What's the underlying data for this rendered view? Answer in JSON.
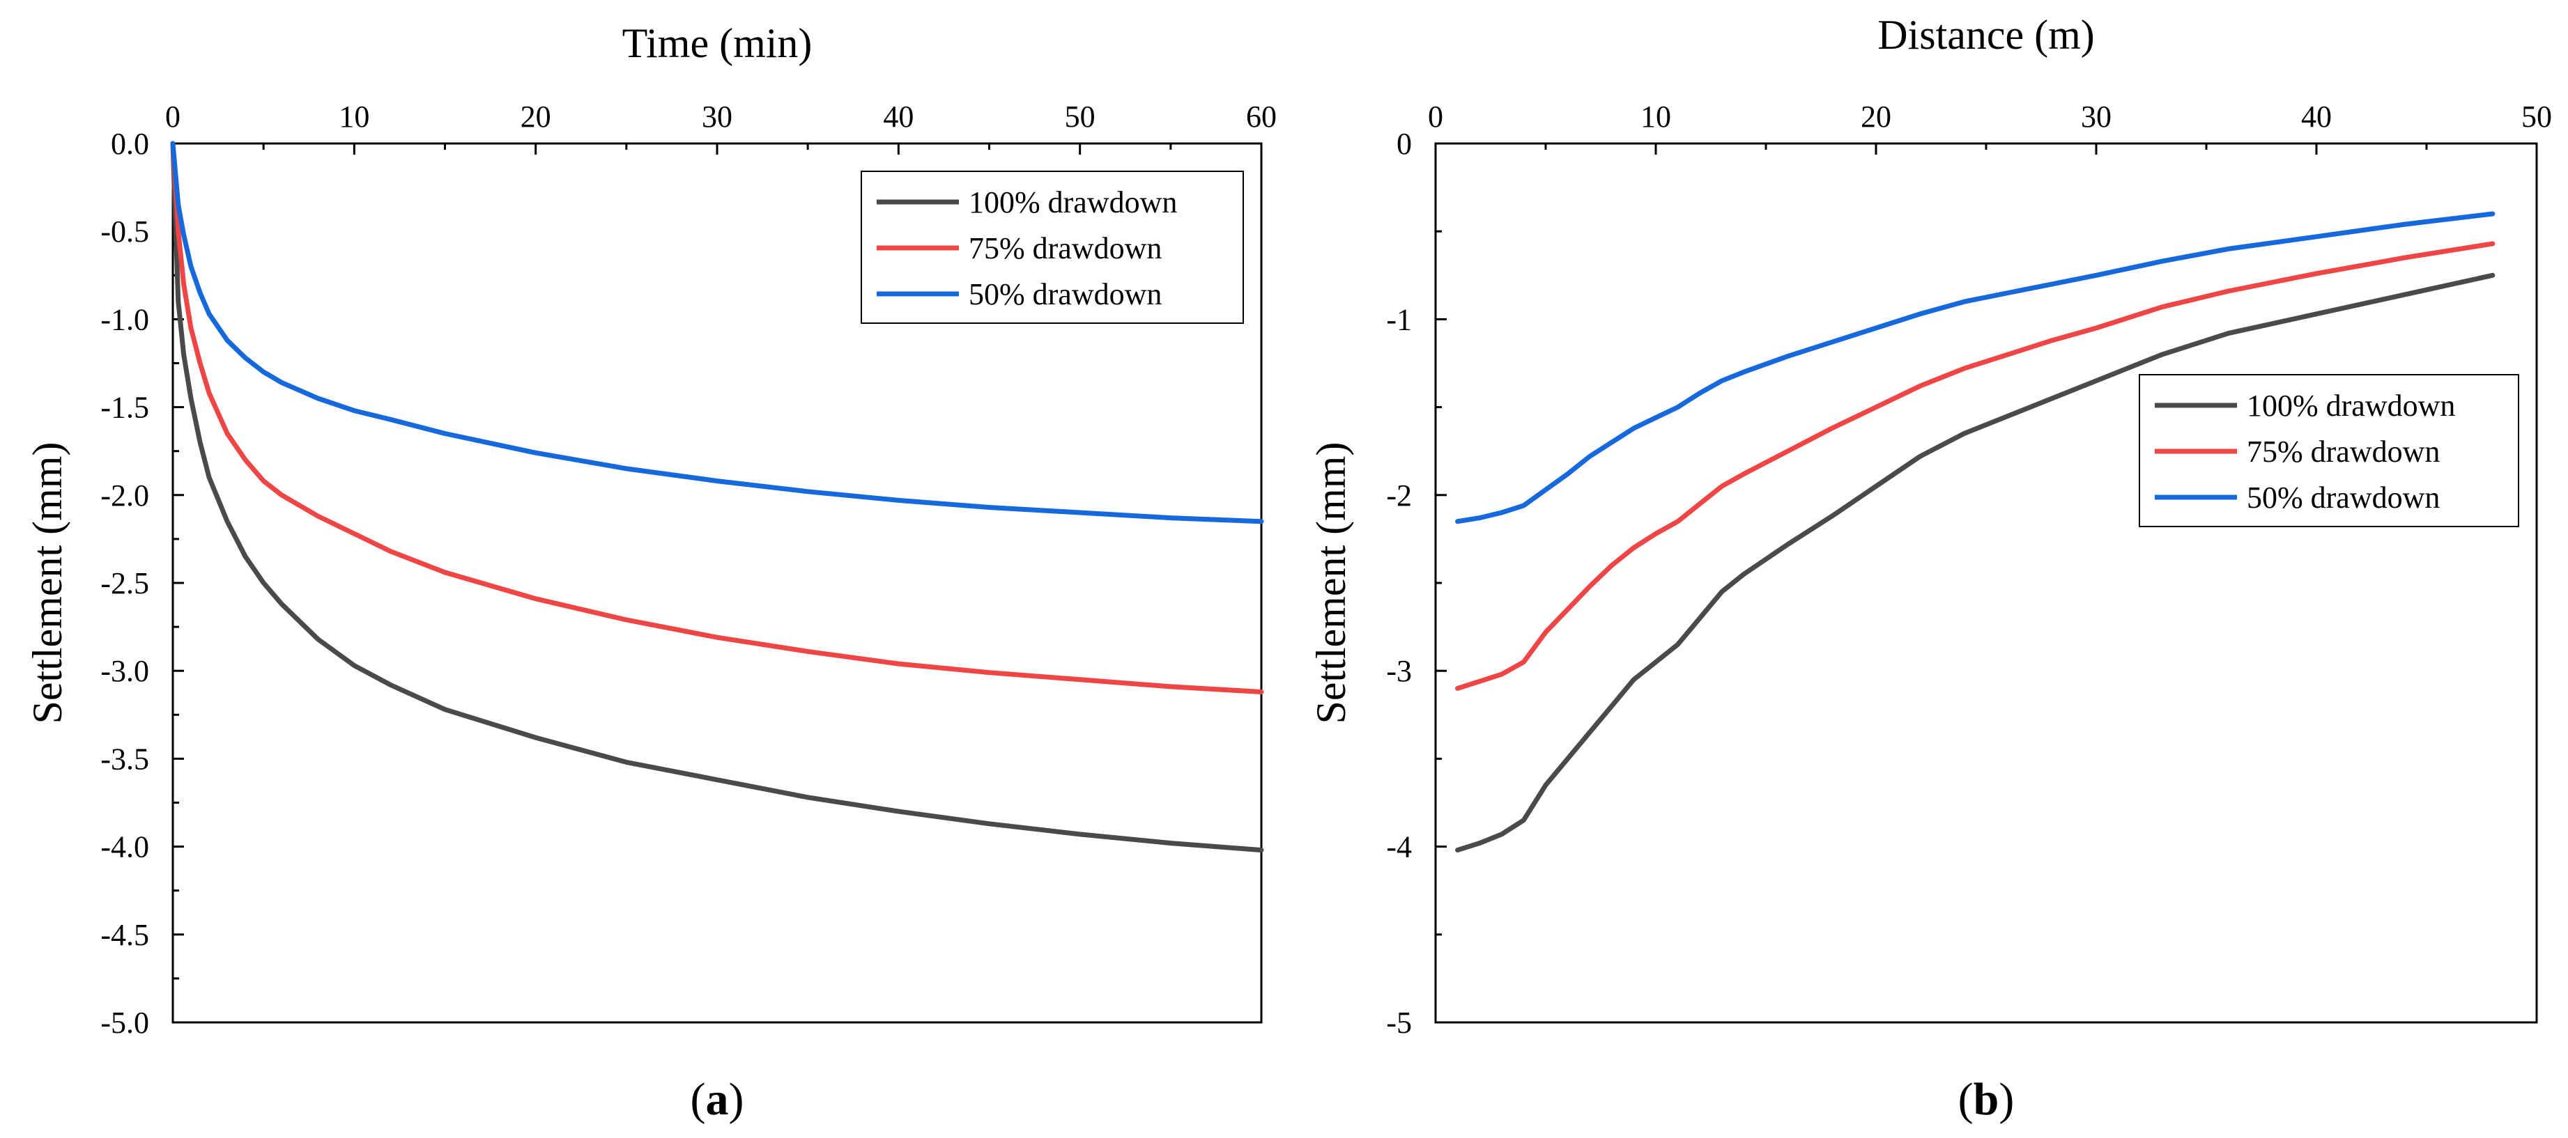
{
  "colors": {
    "s100": "#4a4a4a",
    "s75": "#f04545",
    "s50": "#1668dd"
  },
  "chart_data": [
    {
      "type": "line",
      "panel_label": "a",
      "xlabel": "Time (min)",
      "ylabel": "Settlement (mm)",
      "x_axis_position": "top",
      "xlim": [
        0,
        60
      ],
      "ylim": [
        -5.0,
        0.0
      ],
      "xticks": [
        "0",
        "10",
        "20",
        "30",
        "40",
        "50",
        "60"
      ],
      "yticks": [
        "0.0",
        "-0.5",
        "-1.0",
        "-1.5",
        "-2.0",
        "-2.5",
        "-3.0",
        "-3.5",
        "-4.0",
        "-4.5",
        "-5.0"
      ],
      "grid": false,
      "legend_position": "top-right",
      "series": [
        {
          "name": "100% drawdown",
          "color": "#4a4a4a",
          "x": [
            0,
            0.3,
            0.6,
            1,
            1.5,
            2,
            3,
            4,
            5,
            6,
            8,
            10,
            12,
            15,
            20,
            25,
            30,
            35,
            40,
            45,
            50,
            55,
            60
          ],
          "y": [
            0,
            -0.9,
            -1.2,
            -1.45,
            -1.7,
            -1.9,
            -2.15,
            -2.35,
            -2.5,
            -2.62,
            -2.82,
            -2.97,
            -3.08,
            -3.22,
            -3.38,
            -3.52,
            -3.62,
            -3.72,
            -3.8,
            -3.87,
            -3.93,
            -3.98,
            -4.02
          ]
        },
        {
          "name": "75% drawdown",
          "color": "#f04545",
          "x": [
            0,
            0.3,
            0.6,
            1,
            1.5,
            2,
            3,
            4,
            5,
            6,
            8,
            10,
            12,
            15,
            20,
            25,
            30,
            35,
            40,
            45,
            50,
            55,
            60
          ],
          "y": [
            0,
            -0.5,
            -0.8,
            -1.05,
            -1.25,
            -1.42,
            -1.65,
            -1.8,
            -1.92,
            -2.0,
            -2.12,
            -2.22,
            -2.32,
            -2.44,
            -2.59,
            -2.71,
            -2.81,
            -2.89,
            -2.96,
            -3.01,
            -3.05,
            -3.09,
            -3.12
          ]
        },
        {
          "name": "50% drawdown",
          "color": "#1668dd",
          "x": [
            0,
            0.3,
            0.6,
            1,
            1.5,
            2,
            3,
            4,
            5,
            6,
            8,
            10,
            12,
            15,
            20,
            25,
            30,
            35,
            40,
            45,
            50,
            55,
            60
          ],
          "y": [
            0,
            -0.35,
            -0.52,
            -0.7,
            -0.85,
            -0.97,
            -1.12,
            -1.22,
            -1.3,
            -1.36,
            -1.45,
            -1.52,
            -1.57,
            -1.65,
            -1.76,
            -1.85,
            -1.92,
            -1.98,
            -2.03,
            -2.07,
            -2.1,
            -2.13,
            -2.15
          ]
        }
      ]
    },
    {
      "type": "line",
      "panel_label": "b",
      "xlabel": "Distance (m)",
      "ylabel": "Settlement (mm)",
      "x_axis_position": "top",
      "xlim": [
        0,
        50
      ],
      "ylim": [
        -5,
        0
      ],
      "xticks": [
        "0",
        "10",
        "20",
        "30",
        "40",
        "50"
      ],
      "yticks": [
        "0",
        "-1",
        "-2",
        "-3",
        "-4",
        "-5"
      ],
      "grid": false,
      "legend_position": "middle-right",
      "series": [
        {
          "name": "100% drawdown",
          "color": "#4a4a4a",
          "x": [
            1,
            2,
            3,
            4,
            5,
            6,
            7,
            8,
            9,
            10,
            11,
            12,
            13,
            14,
            16,
            18,
            20,
            22,
            24,
            26,
            28,
            30,
            33,
            36,
            40,
            44,
            48
          ],
          "y": [
            -4.02,
            -3.98,
            -3.93,
            -3.85,
            -3.65,
            -3.5,
            -3.35,
            -3.2,
            -3.05,
            -2.95,
            -2.85,
            -2.7,
            -2.55,
            -2.45,
            -2.28,
            -2.12,
            -1.95,
            -1.78,
            -1.65,
            -1.55,
            -1.45,
            -1.35,
            -1.2,
            -1.08,
            -0.97,
            -0.86,
            -0.75
          ]
        },
        {
          "name": "75% drawdown",
          "color": "#f04545",
          "x": [
            1,
            2,
            3,
            4,
            5,
            6,
            7,
            8,
            9,
            10,
            11,
            12,
            13,
            14,
            16,
            18,
            20,
            22,
            24,
            26,
            28,
            30,
            33,
            36,
            40,
            44,
            48
          ],
          "y": [
            -3.1,
            -3.06,
            -3.02,
            -2.95,
            -2.78,
            -2.65,
            -2.52,
            -2.4,
            -2.3,
            -2.22,
            -2.15,
            -2.05,
            -1.95,
            -1.88,
            -1.75,
            -1.62,
            -1.5,
            -1.38,
            -1.28,
            -1.2,
            -1.12,
            -1.05,
            -0.93,
            -0.84,
            -0.74,
            -0.65,
            -0.57
          ]
        },
        {
          "name": "50% drawdown",
          "color": "#1668dd",
          "x": [
            1,
            2,
            3,
            4,
            5,
            6,
            7,
            8,
            9,
            10,
            11,
            12,
            13,
            14,
            16,
            18,
            20,
            22,
            24,
            26,
            28,
            30,
            33,
            36,
            40,
            44,
            48
          ],
          "y": [
            -2.15,
            -2.13,
            -2.1,
            -2.06,
            -1.97,
            -1.88,
            -1.78,
            -1.7,
            -1.62,
            -1.56,
            -1.5,
            -1.42,
            -1.35,
            -1.3,
            -1.21,
            -1.13,
            -1.05,
            -0.97,
            -0.9,
            -0.85,
            -0.8,
            -0.75,
            -0.67,
            -0.6,
            -0.53,
            -0.46,
            -0.4
          ]
        }
      ]
    }
  ]
}
